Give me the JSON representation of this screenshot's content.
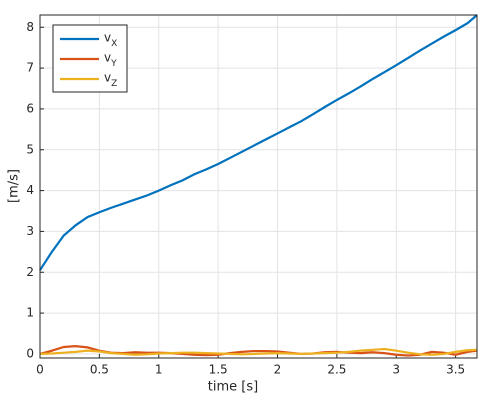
{
  "chart_data": {
    "type": "line",
    "xlabel": "time [s]",
    "ylabel": "[m/s]",
    "x": [
      0,
      0.1,
      0.2,
      0.3,
      0.4,
      0.5,
      0.6,
      0.7,
      0.8,
      0.9,
      1.0,
      1.1,
      1.2,
      1.3,
      1.4,
      1.5,
      1.6,
      1.7,
      1.8,
      1.9,
      2.0,
      2.1,
      2.2,
      2.3,
      2.4,
      2.5,
      2.6,
      2.7,
      2.8,
      2.9,
      3.0,
      3.1,
      3.2,
      3.3,
      3.4,
      3.5,
      3.6,
      3.68
    ],
    "series": [
      {
        "name": "vX",
        "color": "#0072BD",
        "values": [
          2.05,
          2.5,
          2.9,
          3.15,
          3.35,
          3.47,
          3.58,
          3.68,
          3.78,
          3.88,
          4.0,
          4.13,
          4.25,
          4.4,
          4.52,
          4.65,
          4.8,
          4.95,
          5.1,
          5.25,
          5.4,
          5.55,
          5.7,
          5.87,
          6.05,
          6.22,
          6.38,
          6.55,
          6.73,
          6.9,
          7.07,
          7.25,
          7.43,
          7.6,
          7.77,
          7.93,
          8.1,
          8.3
        ]
      },
      {
        "name": "vY",
        "color": "#D95319",
        "values": [
          0,
          0.08,
          0.17,
          0.19,
          0.16,
          0.08,
          0.03,
          0.02,
          0.04,
          0.03,
          0.03,
          0.02,
          0.0,
          -0.02,
          -0.03,
          -0.02,
          0.02,
          0.05,
          0.07,
          0.07,
          0.06,
          0.03,
          0.0,
          0.01,
          0.04,
          0.05,
          0.03,
          0.02,
          0.04,
          0.02,
          -0.02,
          -0.04,
          -0.02,
          0.05,
          0.03,
          -0.02,
          0.05,
          0.08
        ]
      },
      {
        "name": "vZ",
        "color": "#EDB120",
        "values": [
          0,
          0.01,
          0.03,
          0.05,
          0.08,
          0.06,
          0.02,
          0.0,
          -0.02,
          -0.01,
          0.01,
          0.02,
          0.03,
          0.03,
          0.02,
          0.01,
          0.0,
          -0.01,
          0.0,
          0.01,
          0.02,
          0.01,
          0.0,
          0.01,
          0.02,
          0.03,
          0.05,
          0.08,
          0.1,
          0.12,
          0.08,
          0.03,
          -0.01,
          -0.02,
          0.0,
          0.05,
          0.09,
          0.1
        ]
      }
    ],
    "xlim": [
      0,
      3.68
    ],
    "ylim": [
      -0.1,
      8.3
    ],
    "xticks": [
      0,
      0.5,
      1,
      1.5,
      2,
      2.5,
      3,
      3.5
    ],
    "yticks": [
      0,
      1,
      2,
      3,
      4,
      5,
      6,
      7,
      8
    ],
    "grid": true,
    "legend": "top-left"
  }
}
